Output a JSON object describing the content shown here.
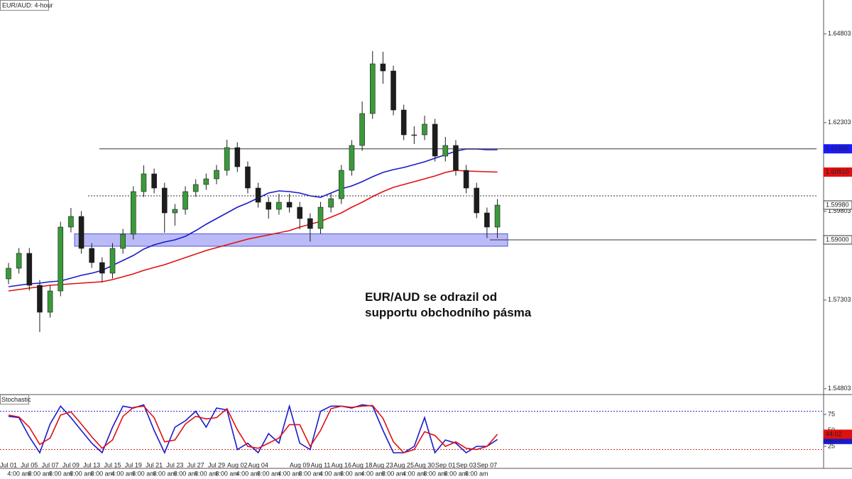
{
  "chart_data": [
    {
      "type": "candlestick",
      "title": "EUR/AUD: 4-hour",
      "categories": [
        "Jul 01",
        null,
        "Jul 05",
        null,
        "Jul 07",
        null,
        "Jul 09",
        null,
        "Jul 13",
        null,
        "Jul 15",
        null,
        "Jul 19",
        null,
        "Jul 21",
        null,
        "Jul 23",
        null,
        "Jul 27",
        null,
        "Jul 29",
        null,
        "Aug 02",
        null,
        "Aug 04",
        null,
        null,
        null,
        "Aug 09",
        null,
        "Aug 11",
        null,
        "Aug 16",
        null,
        "Aug 18",
        null,
        "Aug 23",
        null,
        "Aug 25",
        null,
        "Aug 30",
        null,
        "Sep 01",
        null,
        "Sep 03",
        null,
        "Sep 07",
        null
      ],
      "time_labels": [
        null,
        "4:00 am",
        null,
        "8:00 am",
        null,
        "8:00 am",
        null,
        "8:00 am",
        null,
        "8:00 am",
        null,
        "4:00 am",
        null,
        "8:00 am",
        null,
        "8:00 am",
        null,
        "8:00 am",
        null,
        "8:00 am",
        null,
        "8:00 am",
        null,
        "4:00 am",
        null,
        "8:00 am",
        null,
        "4:00 am",
        null,
        "8:00 am",
        null,
        "4:00 am",
        null,
        "8:00 am",
        null,
        "4:00 am",
        null,
        "8:00 am",
        null,
        "4:00 am",
        null,
        "8:00 am",
        null,
        "8:00 am",
        null,
        "8:00 am",
        null,
        null
      ],
      "open": [
        1.579,
        1.582,
        1.5862,
        1.5772,
        1.5696,
        1.5756,
        1.5936,
        1.5966,
        1.5876,
        1.5836,
        1.5806,
        1.5876,
        1.5916,
        1.6036,
        1.6086,
        1.6046,
        1.5976,
        1.5986,
        1.6036,
        1.6056,
        1.6072,
        1.6096,
        1.616,
        1.6106,
        1.6046,
        1.6006,
        1.5986,
        1.6006,
        1.5992,
        1.596,
        1.5932,
        1.5992,
        1.6016,
        1.6096,
        1.6166,
        1.6256,
        1.6396,
        1.6376,
        1.6266,
        1.6196,
        1.6196,
        1.6226,
        1.6136,
        1.6166,
        1.6096,
        1.6046,
        1.5976,
        1.5936
      ],
      "high": [
        1.5835,
        1.5877,
        1.5877,
        1.5787,
        1.5771,
        1.5951,
        1.599,
        1.5981,
        1.5891,
        1.5851,
        1.5891,
        1.5931,
        1.6051,
        1.611,
        1.6101,
        1.6061,
        1.6001,
        1.6051,
        1.6071,
        1.6087,
        1.6111,
        1.6182,
        1.6175,
        1.6121,
        1.6061,
        1.6021,
        1.603,
        1.603,
        1.6007,
        1.5975,
        1.6007,
        1.6031,
        1.6111,
        1.6181,
        1.629,
        1.6432,
        1.643,
        1.6391,
        1.6281,
        1.622,
        1.625,
        1.6241,
        1.619,
        1.6181,
        1.6111,
        1.6061,
        1.5991,
        1.6015
      ],
      "low": [
        1.5775,
        1.5805,
        1.5757,
        1.564,
        1.5681,
        1.5741,
        1.5921,
        1.5861,
        1.5821,
        1.578,
        1.5791,
        1.5861,
        1.5901,
        1.6021,
        1.6031,
        1.592,
        1.594,
        1.5971,
        1.6021,
        1.6041,
        1.6057,
        1.6081,
        1.6091,
        1.6031,
        1.5991,
        1.596,
        1.5971,
        1.5977,
        1.593,
        1.5895,
        1.5917,
        1.5977,
        1.6001,
        1.6081,
        1.6151,
        1.6241,
        1.634,
        1.6251,
        1.6181,
        1.617,
        1.6181,
        1.6121,
        1.6121,
        1.6081,
        1.6031,
        1.5961,
        1.5905,
        1.5905
      ],
      "close": [
        1.582,
        1.5862,
        1.5772,
        1.5696,
        1.5756,
        1.5936,
        1.5966,
        1.5876,
        1.5836,
        1.5806,
        1.5876,
        1.5916,
        1.6036,
        1.6086,
        1.6046,
        1.5976,
        1.5986,
        1.6036,
        1.6056,
        1.6072,
        1.6096,
        1.616,
        1.6106,
        1.6046,
        1.6006,
        1.5986,
        1.6006,
        1.5992,
        1.596,
        1.5932,
        1.5992,
        1.6016,
        1.6096,
        1.6166,
        1.6256,
        1.6396,
        1.6376,
        1.6266,
        1.6196,
        1.6196,
        1.6226,
        1.6136,
        1.6166,
        1.6096,
        1.6046,
        1.5976,
        1.5936,
        1.5998
      ],
      "last_close_label": "1.59980",
      "up_color": "#3a9a3a",
      "down_color": "#1d1d1d",
      "series": [
        {
          "color": "#1a1acc",
          "values": [
            1.5768,
            1.5772,
            1.5776,
            1.5778,
            1.5782,
            1.5784,
            1.5792,
            1.58,
            1.5806,
            1.5814,
            1.5828,
            1.5842,
            1.5856,
            1.5874,
            1.5886,
            1.5894,
            1.59,
            1.591,
            1.5926,
            1.5944,
            1.596,
            1.5976,
            1.5992,
            1.6004,
            1.6018,
            1.6032,
            1.6038,
            1.6036,
            1.6032,
            1.6024,
            1.602,
            1.6032,
            1.6044,
            1.6052,
            1.6064,
            1.6078,
            1.609,
            1.6098,
            1.6104,
            1.6112,
            1.612,
            1.613,
            1.614,
            1.615,
            1.6156,
            1.6156,
            1.6154,
            1.6154
          ]
        },
        {
          "color": "#e01010",
          "last_label": "1.60910",
          "values": [
            1.5756,
            1.576,
            1.5764,
            1.5768,
            1.5772,
            1.5774,
            1.5776,
            1.5778,
            1.578,
            1.5782,
            1.5788,
            1.5796,
            1.5804,
            1.5814,
            1.5822,
            1.583,
            1.584,
            1.585,
            1.586,
            1.587,
            1.5878,
            1.5886,
            1.5894,
            1.5902,
            1.5908,
            1.5914,
            1.592,
            1.5926,
            1.5936,
            1.5944,
            1.5952,
            1.5964,
            1.5976,
            1.5992,
            1.6006,
            1.6022,
            1.6036,
            1.6048,
            1.6056,
            1.6064,
            1.6072,
            1.608,
            1.609,
            1.6096,
            1.6094,
            1.6093,
            1.6092,
            1.6091
          ]
        }
      ],
      "levels": [
        {
          "value": 1.61566,
          "style": "solid",
          "tag_color": "#1a1aff"
        },
        {
          "value": 1.6024,
          "style": "dotted"
        },
        {
          "value": 1.59,
          "label": "1.59000",
          "style": "solid",
          "tag_color": "#ffffff"
        }
      ],
      "zone": {
        "from": 1.5882,
        "to": 1.5917,
        "color": "#8c8cf0"
      },
      "annotation": [
        "EUR/AUD se odrazil od",
        "supportu obchodního pásma"
      ],
      "ylim": [
        1.5466,
        1.6576
      ],
      "yticks": [
        1.54803,
        1.57303,
        1.59803,
        1.62303,
        1.64803
      ]
    },
    {
      "type": "line",
      "title": "Stochastic",
      "series": [
        {
          "color": "#1a1acc",
          "values": [
            72,
            70,
            40,
            15,
            60,
            88,
            70,
            50,
            30,
            15,
            55,
            88,
            85,
            90,
            50,
            15,
            55,
            65,
            80,
            55,
            85,
            82,
            20,
            30,
            15,
            45,
            30,
            88,
            30,
            20,
            80,
            88,
            88,
            85,
            90,
            88,
            50,
            15,
            15,
            25,
            70,
            15,
            35,
            30,
            15,
            25,
            25,
            35.78
          ]
        },
        {
          "color": "#e01010",
          "values": [
            74,
            71,
            55,
            28,
            38,
            74,
            79,
            60,
            40,
            22,
            35,
            72,
            86,
            88,
            70,
            32,
            35,
            60,
            72,
            68,
            70,
            84,
            51,
            25,
            22,
            30,
            38,
            59,
            59,
            25,
            50,
            84,
            88,
            86,
            88,
            89,
            69,
            32,
            15,
            20,
            48,
            42,
            25,
            32,
            22,
            20,
            25,
            44.02
          ]
        }
      ],
      "levels": [
        {
          "value": 80,
          "color": "#3333cc"
        },
        {
          "value": 20,
          "color": "#cc3333"
        }
      ],
      "ylim": [
        -9.4,
        106.1
      ],
      "yticks": [
        25,
        50,
        75
      ]
    }
  ]
}
